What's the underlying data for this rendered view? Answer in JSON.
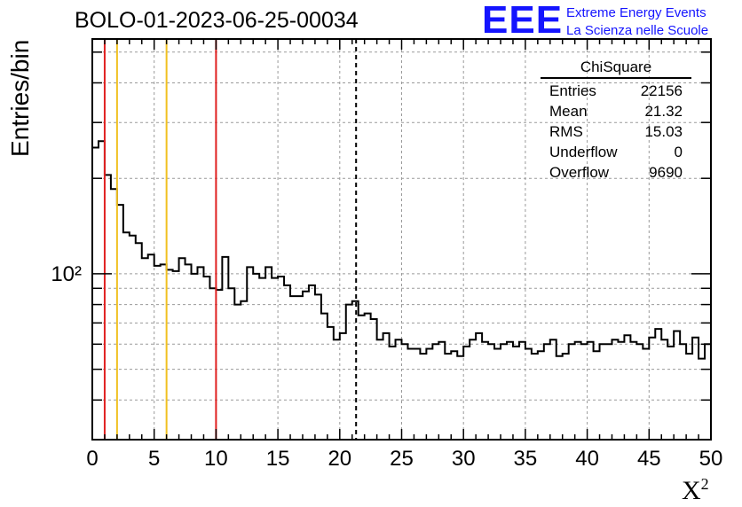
{
  "title": "BOLO-01-2023-06-25-00034",
  "logo": {
    "letters": "EEE",
    "line1": "Extreme Energy Events",
    "line2": "La Scienza nelle Scuole",
    "color": "#1414ff"
  },
  "stats_box": {
    "name": "ChiSquare",
    "rows": [
      {
        "label": "Entries",
        "value": "22156"
      },
      {
        "label": "Mean",
        "value": "21.32"
      },
      {
        "label": "RMS",
        "value": "15.03"
      },
      {
        "label": "Underflow",
        "value": "0"
      },
      {
        "label": "Overflow",
        "value": "9690"
      }
    ]
  },
  "chart_data": {
    "type": "histogram",
    "title": "BOLO-01-2023-06-25-00034",
    "xlabel": "X²",
    "ylabel": "Entries/bin",
    "xlim": [
      0,
      50
    ],
    "ylim": [
      30,
      550
    ],
    "y_scale": "log",
    "grid": true,
    "bin_width": 0.5,
    "xticks": [
      0,
      5,
      10,
      15,
      20,
      25,
      30,
      35,
      40,
      45,
      50
    ],
    "ytick_labels": [
      "10²"
    ],
    "values": [
      250,
      262,
      205,
      185,
      165,
      135,
      132,
      125,
      112,
      115,
      106,
      107,
      103,
      102,
      112,
      107,
      100,
      105,
      98,
      90,
      89,
      113,
      90,
      80,
      82,
      105,
      100,
      97,
      105,
      97,
      98,
      92,
      85,
      85,
      88,
      92,
      86,
      75,
      68,
      62,
      65,
      80,
      82,
      74,
      75,
      72,
      62,
      65,
      59,
      62,
      60,
      58,
      58,
      56,
      58,
      60,
      61,
      56,
      57,
      55,
      59,
      62,
      65,
      61,
      60,
      58,
      60,
      61,
      59,
      61,
      58,
      56,
      57,
      60,
      62,
      55,
      56,
      60,
      61,
      60,
      61,
      57,
      60,
      60,
      62,
      61,
      64,
      61,
      60,
      58,
      63,
      67,
      62,
      59,
      66,
      60,
      56,
      63,
      54,
      60
    ],
    "vertical_lines": [
      {
        "x": 1,
        "color": "#e02020",
        "style": "solid"
      },
      {
        "x": 2,
        "color": "#f0c020",
        "style": "solid"
      },
      {
        "x": 6,
        "color": "#f0c020",
        "style": "solid"
      },
      {
        "x": 10,
        "color": "#e02020",
        "style": "solid"
      },
      {
        "x": 21.32,
        "color": "#000000",
        "style": "dashed"
      }
    ]
  }
}
